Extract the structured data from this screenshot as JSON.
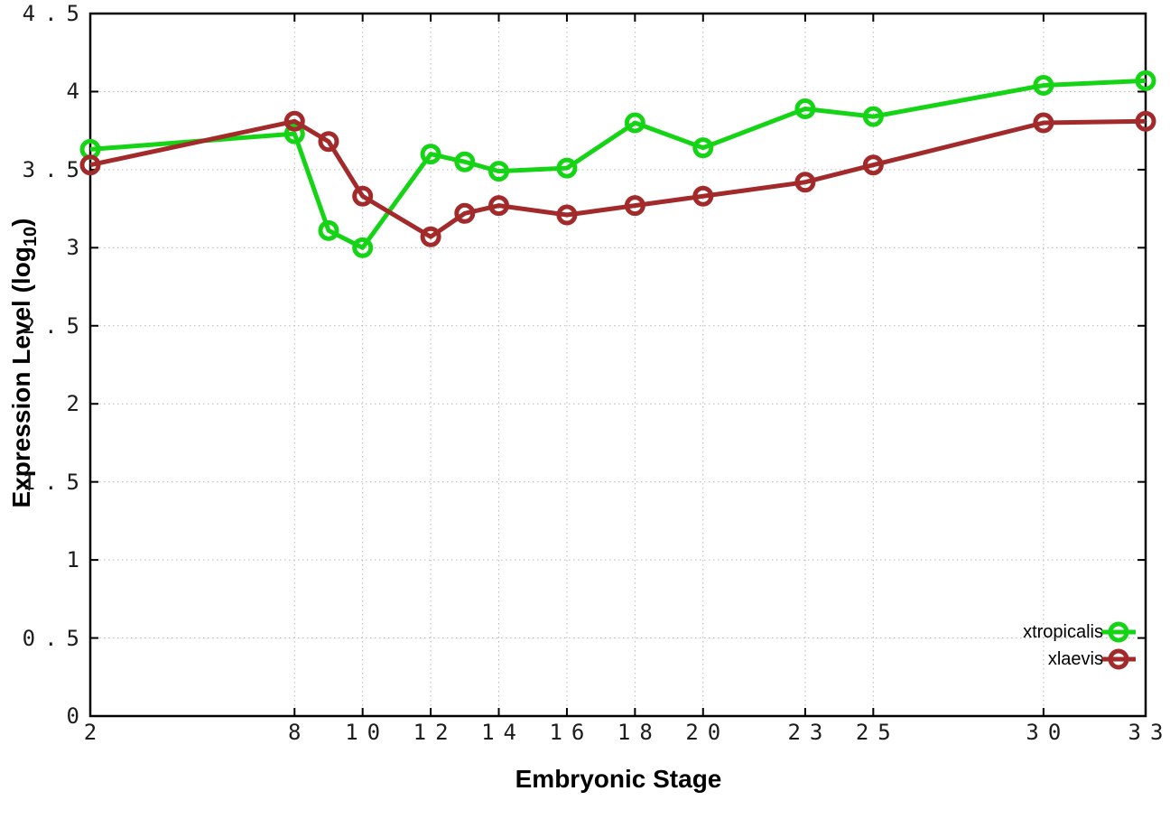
{
  "chart_data": {
    "type": "line",
    "xlabel": "Embryonic Stage",
    "ylabel": "Expression Level (log10)",
    "ylabel_parts": {
      "prefix": "Expression Level (log",
      "sub": "10",
      "suffix": ")"
    },
    "x": [
      2,
      8,
      9,
      10,
      12,
      13,
      14,
      16,
      18,
      20,
      23,
      25,
      30,
      33
    ],
    "series": [
      {
        "name": "xtropicalis",
        "color": "#15d415",
        "values": [
          3.63,
          3.73,
          3.11,
          3.0,
          3.6,
          3.55,
          3.49,
          3.51,
          3.8,
          3.64,
          3.89,
          3.84,
          4.04,
          4.07
        ]
      },
      {
        "name": "xlaevis",
        "color": "#a32a2a",
        "values": [
          3.53,
          3.81,
          3.68,
          3.33,
          3.07,
          3.22,
          3.27,
          3.21,
          3.27,
          3.33,
          3.42,
          3.53,
          3.8,
          3.81
        ]
      }
    ],
    "xlim": [
      2,
      33
    ],
    "ylim": [
      0,
      4.5
    ],
    "xticks": [
      2,
      8,
      10,
      12,
      14,
      16,
      18,
      20,
      23,
      25,
      30,
      33
    ],
    "xtick_labels": [
      "2",
      "8",
      "10",
      "12",
      "14",
      "16",
      "18",
      "20",
      "23",
      "25",
      "30",
      "33"
    ],
    "yticks": [
      0,
      0.5,
      1,
      1.5,
      2,
      2.5,
      3,
      3.5,
      4,
      4.5
    ],
    "ytick_labels": [
      "0",
      "0.5",
      "1",
      "1.5",
      "2",
      "2.5",
      "3",
      "3.5",
      "4",
      "4.5"
    ],
    "grid": true,
    "grid_style": "dotted",
    "legend_position": "bottom-right",
    "marker": "open-circle",
    "axis_color": "#000000",
    "grid_color": "#b8b8b8",
    "background_color": "#ffffff"
  }
}
